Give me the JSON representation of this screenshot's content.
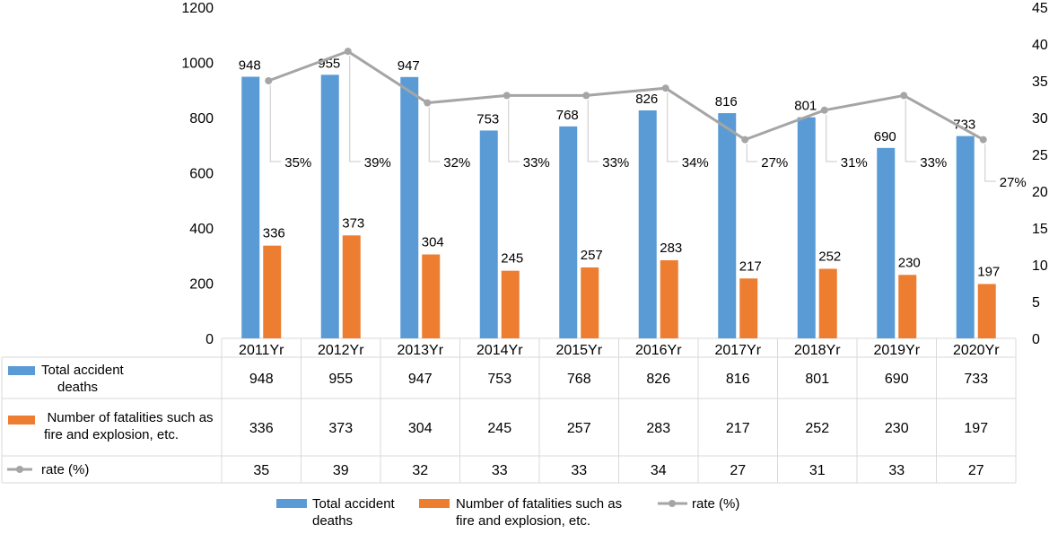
{
  "chart_data": {
    "type": "bar",
    "categories": [
      "2011Yr",
      "2012Yr",
      "2013Yr",
      "2014Yr",
      "2015Yr",
      "2016Yr",
      "2017Yr",
      "2018Yr",
      "2019Yr",
      "2020Yr"
    ],
    "series": [
      {
        "name": "Total accident deaths",
        "type": "bar",
        "axis": "left",
        "color": "#5b9bd5",
        "values": [
          948,
          955,
          947,
          753,
          768,
          826,
          816,
          801,
          690,
          733
        ]
      },
      {
        "name": "Number of fatalities such as fire and explosion, etc.",
        "type": "bar",
        "axis": "left",
        "color": "#ed7d31",
        "values": [
          336,
          373,
          304,
          245,
          257,
          283,
          217,
          252,
          230,
          197
        ]
      },
      {
        "name": "rate (%)",
        "type": "line",
        "axis": "right",
        "color": "#a5a5a5",
        "values": [
          35,
          39,
          32,
          33,
          33,
          34,
          27,
          31,
          33,
          27
        ]
      }
    ],
    "y_left": {
      "ticks": [
        "0",
        "200",
        "400",
        "600",
        "800",
        "1000",
        "1200"
      ],
      "ylim": [
        0,
        1200
      ]
    },
    "y_right": {
      "ticks": [
        "0",
        "5",
        "10",
        "15",
        "20",
        "25",
        "30",
        "35",
        "40",
        "45"
      ],
      "ylim": [
        0,
        45
      ]
    },
    "rate_labels": [
      "35%",
      "39%",
      "32%",
      "33%",
      "33%",
      "34%",
      "27%",
      "31%",
      "33%",
      "27%"
    ],
    "data_table": {
      "rows": [
        {
          "label_lines": [
            "Total accident",
            "deaths"
          ],
          "values": [
            "948",
            "955",
            "947",
            "753",
            "768",
            "826",
            "816",
            "801",
            "690",
            "733"
          ]
        },
        {
          "label_lines": [
            "Number of fatalities such as",
            "fire and explosion, etc."
          ],
          "values": [
            "336",
            "373",
            "304",
            "245",
            "257",
            "283",
            "217",
            "252",
            "230",
            "197"
          ]
        },
        {
          "label_lines": [
            "rate (%)"
          ],
          "values": [
            "35",
            "39",
            "32",
            "33",
            "33",
            "34",
            "27",
            "31",
            "33",
            "27"
          ]
        }
      ]
    },
    "legend": {
      "position": "bottom",
      "items": [
        {
          "label_lines": [
            "Total accident",
            "deaths"
          ],
          "marker": "bar",
          "color": "#5b9bd5"
        },
        {
          "label_lines": [
            "Number of fatalities such as",
            "fire and explosion, etc."
          ],
          "marker": "bar",
          "color": "#ed7d31"
        },
        {
          "label_lines": [
            "rate (%)"
          ],
          "marker": "line",
          "color": "#a5a5a5"
        }
      ]
    },
    "grid": false,
    "title": "",
    "xlabel": "",
    "ylabel": ""
  }
}
